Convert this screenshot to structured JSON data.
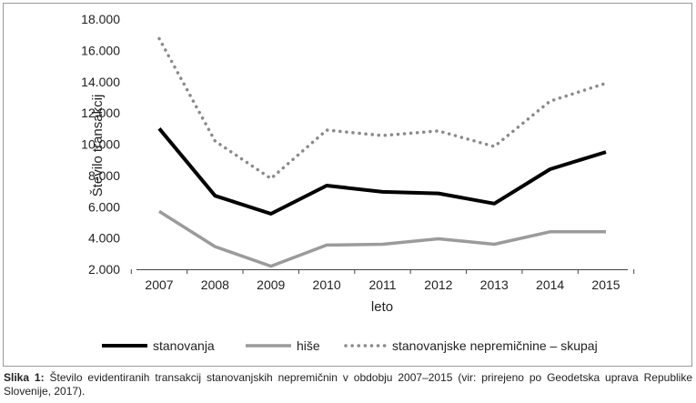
{
  "chart_data": {
    "type": "line",
    "categories": [
      "2007",
      "2008",
      "2009",
      "2010",
      "2011",
      "2012",
      "2013",
      "2014",
      "2015"
    ],
    "series": [
      {
        "name": "stanovanja",
        "values": [
          11000,
          6700,
          5550,
          7350,
          6950,
          6850,
          6200,
          8400,
          9500
        ],
        "color": "#000000",
        "style": "solid"
      },
      {
        "name": "hiše",
        "values": [
          5700,
          3450,
          2200,
          3550,
          3600,
          3950,
          3600,
          4400,
          4400
        ],
        "color": "#9b9b9b",
        "style": "solid"
      },
      {
        "name": "stanovanjske nepremičnine – skupaj",
        "values": [
          16750,
          10200,
          7800,
          10900,
          10550,
          10850,
          9850,
          12750,
          13900
        ],
        "color": "#8a8a8a",
        "style": "dotted"
      }
    ],
    "yticks": [
      "2.000",
      "4.000",
      "6.000",
      "8.000",
      "10.000",
      "12.000",
      "14.000",
      "16.000",
      "18.000"
    ],
    "ylim": [
      2000,
      18000
    ],
    "xlabel": "leto",
    "ylabel": "Število transakcij",
    "grid": false,
    "legend_position": "bottom"
  },
  "caption": {
    "label": "Slika 1:",
    "text": " Število evidentiranih transakcij stanovanjskih nepremičnin v obdobju 2007–2015 (vir: prirejeno po Geodetska uprava Republike Slovenije, 2017)."
  }
}
